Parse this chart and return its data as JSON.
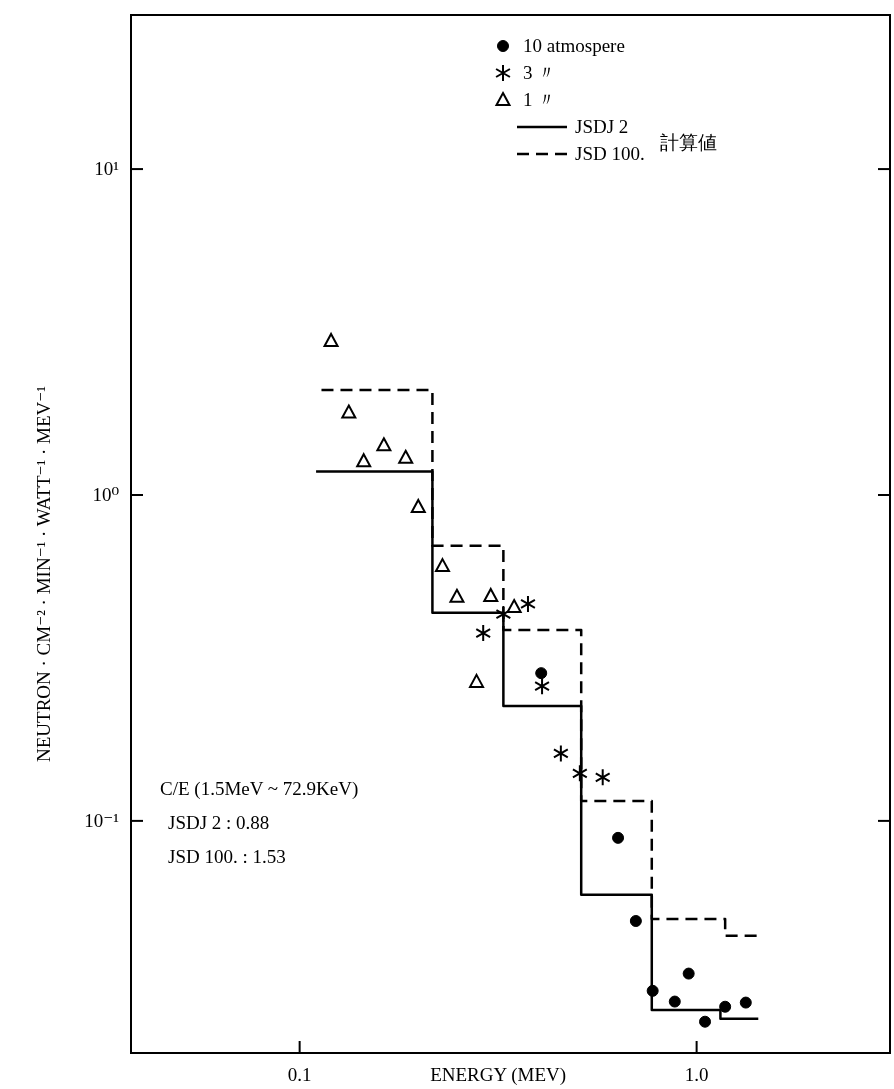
{
  "chart_data": {
    "type": "scatter",
    "xlabel": "ENERGY (MEV)",
    "ylabel": "NEUTRON · CM⁻² · MIN⁻¹ · WATT⁻¹ · MEV⁻¹",
    "log": "xy",
    "grid": false,
    "legend": "top right",
    "xlim": [
      0.0376,
      3.07
    ],
    "ylim": [
      0.0194,
      29.7
    ],
    "xticks": [
      {
        "value": 0.1,
        "label": "0.1"
      },
      {
        "value": 1,
        "label": "1.0"
      }
    ],
    "yticks": [
      {
        "value": 10,
        "label": "10¹"
      },
      {
        "value": 1,
        "label": "10⁰"
      },
      {
        "value": 0.1,
        "label": "10⁻¹"
      }
    ],
    "annotations": [
      "計算値",
      "C/E (1.5MeV ~ 72.9KeV)",
      "JSDJ 2 : 0.88",
      "JSD 100. : 1.53"
    ],
    "series": [
      {
        "name": "10 atmospere",
        "type": "scatter",
        "marker": "circle",
        "color": "#000000",
        "x": [
          0.406,
          0.634,
          0.703,
          0.775,
          0.881,
          0.955,
          1.05,
          1.18,
          1.33
        ],
        "values": [
          0.284,
          0.0887,
          0.0493,
          0.0301,
          0.0279,
          0.034,
          0.0242,
          0.0269,
          0.0277
        ]
      },
      {
        "name": "3 〃",
        "type": "scatter",
        "marker": "cross",
        "color": "#000000",
        "x": [
          0.29,
          0.326,
          0.376,
          0.408,
          0.455,
          0.508,
          0.58
        ],
        "values": [
          0.377,
          0.431,
          0.463,
          0.259,
          0.161,
          0.14,
          0.136
        ]
      },
      {
        "name": "1 〃",
        "type": "scatter",
        "marker": "triangle",
        "color": "#000000",
        "x": [
          0.12,
          0.133,
          0.145,
          0.163,
          0.185,
          0.199,
          0.229,
          0.249,
          0.279,
          0.303,
          0.347
        ],
        "values": [
          2.97,
          1.79,
          1.27,
          1.42,
          1.3,
          0.919,
          0.605,
          0.487,
          0.267,
          0.49,
          0.453
        ]
      },
      {
        "name": "JSDJ 2",
        "type": "step",
        "line_style": "solid",
        "color": "#000000",
        "x": [
          0.11,
          0.216,
          0.326,
          0.512,
          0.771,
          1.148,
          1.43
        ],
        "values": [
          1.18,
          0.435,
          0.225,
          0.0593,
          0.0263,
          0.0247,
          0.0247
        ]
      },
      {
        "name": "JSD 100.",
        "type": "step",
        "line_style": "dashed",
        "color": "#000000",
        "x": [
          0.1135,
          0.216,
          0.326,
          0.512,
          0.771,
          1.18,
          1.43
        ],
        "values": [
          2.1,
          0.698,
          0.385,
          0.115,
          0.05,
          0.0444,
          0.0444
        ]
      }
    ]
  }
}
